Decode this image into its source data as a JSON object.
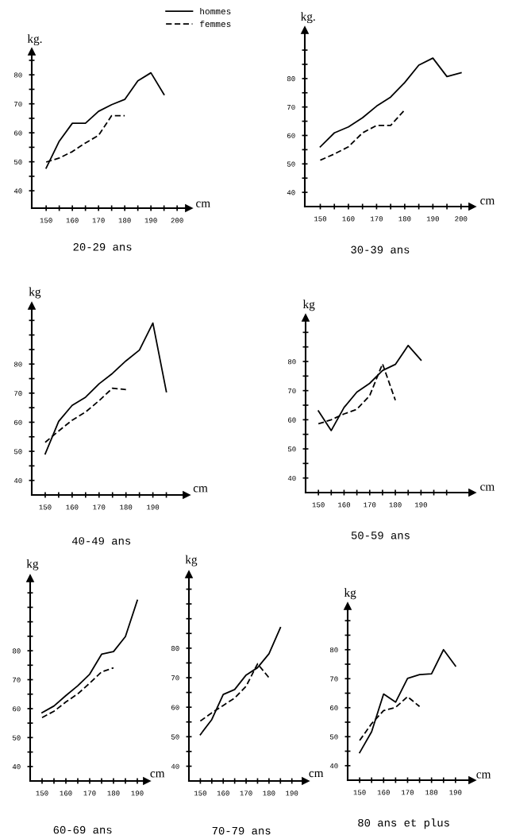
{
  "chart_data": [
    {
      "type": "line",
      "title": "20-29 ans",
      "xlabel": "cm",
      "ylabel": "kg.",
      "legend": "top right",
      "grid": false,
      "xlim": [
        144.5,
        204.5
      ],
      "ylim": [
        34,
        88
      ],
      "xticks": [
        150,
        {
          "value": 155,
          "label": null
        },
        160,
        {
          "value": 165,
          "label": null
        },
        170,
        {
          "value": 175,
          "label": null
        },
        180,
        {
          "value": 185,
          "label": null
        },
        190,
        {
          "value": 195,
          "label": null
        },
        200
      ],
      "yticks": [
        40,
        {
          "value": 45,
          "label": null
        },
        50,
        {
          "value": 55,
          "label": null
        },
        60,
        {
          "value": 65,
          "label": null
        },
        70,
        {
          "value": 75,
          "label": null
        },
        80,
        {
          "value": 85,
          "label": null
        }
      ],
      "series": [
        {
          "name": "hommes",
          "color": "#000000",
          "line_style": "solid",
          "x": [
            150,
            155,
            160,
            165,
            170,
            175,
            180,
            185,
            190,
            195
          ],
          "values": [
            47.8,
            57.1,
            63.3,
            63.3,
            67.4,
            69.7,
            71.5,
            77.9,
            80.7,
            73.2
          ]
        },
        {
          "name": "femmes",
          "color": "#000000",
          "line_style": "dashed",
          "x": [
            150,
            155,
            160,
            165,
            170,
            175,
            180
          ],
          "values": [
            49.9,
            51.3,
            53.5,
            56.5,
            59.1,
            65.9,
            65.9
          ]
        }
      ]
    },
    {
      "type": "line",
      "title": "30-39 ans",
      "xlabel": "cm",
      "ylabel": "kg.",
      "grid": false,
      "xlim": [
        144.5,
        204
      ],
      "ylim": [
        35,
        97
      ],
      "xticks": [
        150,
        {
          "value": 155,
          "label": null
        },
        160,
        {
          "value": 165,
          "label": null
        },
        170,
        {
          "value": 175,
          "label": null
        },
        180,
        {
          "value": 185,
          "label": null
        },
        190,
        {
          "value": 195,
          "label": null
        },
        200
      ],
      "yticks": [
        40,
        {
          "value": 45,
          "label": null
        },
        50,
        {
          "value": 55,
          "label": null
        },
        60,
        {
          "value": 65,
          "label": null
        },
        70,
        {
          "value": 75,
          "label": null
        },
        80,
        {
          "value": 85,
          "label": null
        },
        {
          "value": 90,
          "label": null
        }
      ],
      "series": [
        {
          "color": "#000000",
          "line_style": "solid",
          "x": [
            150,
            155,
            160,
            165,
            170,
            175,
            180,
            185,
            190,
            195,
            200
          ],
          "values": [
            56.0,
            60.9,
            63.0,
            66.2,
            70.3,
            73.5,
            78.6,
            84.7,
            87.2,
            80.7,
            82.0
          ]
        },
        {
          "color": "#000000",
          "line_style": "dashed",
          "x": [
            150,
            155,
            160,
            165,
            170,
            175,
            180
          ],
          "values": [
            51.3,
            53.5,
            56.0,
            60.9,
            63.5,
            63.5,
            69.0
          ]
        }
      ]
    },
    {
      "type": "line",
      "title": "40-49 ans",
      "xlabel": "cm",
      "ylabel": "kg",
      "grid": false,
      "xlim": [
        145,
        202.5
      ],
      "ylim": [
        35,
        100
      ],
      "xticks": [
        150,
        {
          "value": 155,
          "label": null
        },
        160,
        {
          "value": 165,
          "label": null
        },
        170,
        {
          "value": 175,
          "label": null
        },
        180,
        {
          "value": 185,
          "label": null
        },
        190,
        {
          "value": 195,
          "label": null
        }
      ],
      "yticks": [
        40,
        {
          "value": 45,
          "label": null
        },
        50,
        {
          "value": 55,
          "label": null
        },
        60,
        {
          "value": 65,
          "label": null
        },
        70,
        {
          "value": 75,
          "label": null
        },
        80,
        {
          "value": 85,
          "label": null
        },
        {
          "value": 90,
          "label": null
        },
        {
          "value": 95,
          "label": null
        }
      ],
      "series": [
        {
          "color": "#000000",
          "line_style": "solid",
          "x": [
            150,
            155,
            160,
            165,
            170,
            175,
            180,
            185,
            190,
            195
          ],
          "values": [
            49.1,
            60.3,
            65.8,
            68.6,
            73.2,
            76.8,
            81.1,
            84.8,
            94.1,
            70.5
          ]
        },
        {
          "color": "#000000",
          "line_style": "dashed",
          "x": [
            150,
            155,
            160,
            165,
            170,
            175,
            180
          ],
          "values": [
            53.1,
            57.0,
            60.7,
            63.5,
            67.4,
            71.7,
            71.2
          ]
        }
      ]
    },
    {
      "type": "line",
      "title": "50-59 ans",
      "xlabel": "cm",
      "ylabel": "kg",
      "grid": false,
      "xlim": [
        145,
        210
      ],
      "ylim": [
        35,
        95
      ],
      "xticks": [
        150,
        {
          "value": 155,
          "label": null
        },
        160,
        {
          "value": 165,
          "label": null
        },
        170,
        {
          "value": 175,
          "label": null
        },
        180,
        {
          "value": 185,
          "label": null
        },
        190,
        {
          "value": 195,
          "label": null
        },
        {
          "value": 200,
          "label": null
        }
      ],
      "yticks": [
        40,
        {
          "value": 45,
          "label": null
        },
        50,
        {
          "value": 55,
          "label": null
        },
        60,
        {
          "value": 65,
          "label": null
        },
        70,
        {
          "value": 75,
          "label": null
        },
        80,
        {
          "value": 85,
          "label": null
        },
        {
          "value": 90,
          "label": null
        }
      ],
      "series": [
        {
          "color": "#000000",
          "line_style": "solid",
          "x": [
            150,
            155,
            160,
            165,
            170,
            175,
            180,
            185,
            190
          ],
          "values": [
            63.0,
            56.3,
            64.2,
            69.5,
            72.5,
            76.9,
            79.0,
            85.5,
            80.5
          ]
        },
        {
          "color": "#000000",
          "line_style": "dashed",
          "x": [
            150,
            155,
            160,
            165,
            170,
            175,
            180
          ],
          "values": [
            58.6,
            60.0,
            62.0,
            63.6,
            68.3,
            79.2,
            66.7
          ]
        }
      ]
    },
    {
      "type": "line",
      "title": "60-69 ans",
      "xlabel": "cm",
      "ylabel": "kg",
      "grid": false,
      "xlim": [
        145,
        194
      ],
      "ylim": [
        35,
        105
      ],
      "xticks": [
        150,
        {
          "value": 155,
          "label": null
        },
        160,
        {
          "value": 165,
          "label": null
        },
        170,
        {
          "value": 175,
          "label": null
        },
        180,
        {
          "value": 185,
          "label": null
        },
        190
      ],
      "yticks": [
        40,
        {
          "value": 45,
          "label": null
        },
        50,
        {
          "value": 55,
          "label": null
        },
        60,
        {
          "value": 65,
          "label": null
        },
        70,
        {
          "value": 75,
          "label": null
        },
        80,
        {
          "value": 85,
          "label": null
        },
        {
          "value": 90,
          "label": null
        },
        {
          "value": 95,
          "label": null
        },
        {
          "value": 100,
          "label": null
        }
      ],
      "series": [
        {
          "color": "#000000",
          "line_style": "solid",
          "x": [
            150,
            155,
            160,
            165,
            170,
            175,
            180,
            185,
            190
          ],
          "values": [
            58.6,
            60.9,
            64.5,
            67.9,
            71.9,
            78.8,
            79.7,
            84.9,
            97.4
          ]
        },
        {
          "color": "#000000",
          "line_style": "dashed",
          "x": [
            150,
            155,
            160,
            165,
            170,
            175,
            180
          ],
          "values": [
            56.9,
            59.1,
            62.3,
            65.1,
            68.8,
            72.7,
            74.1
          ]
        }
      ]
    },
    {
      "type": "line",
      "title": "70-79 ans",
      "xlabel": "cm",
      "ylabel": "kg",
      "grid": false,
      "xlim": [
        145,
        196
      ],
      "ylim": [
        35,
        105
      ],
      "xticks": [
        150,
        {
          "value": 155,
          "label": null
        },
        160,
        {
          "value": 165,
          "label": null
        },
        170,
        {
          "value": 175,
          "label": null
        },
        180,
        {
          "value": 185,
          "label": null
        },
        190
      ],
      "yticks": [
        40,
        {
          "value": 45,
          "label": null
        },
        50,
        {
          "value": 55,
          "label": null
        },
        60,
        {
          "value": 65,
          "label": null
        },
        70,
        {
          "value": 75,
          "label": null
        },
        80,
        {
          "value": 85,
          "label": null
        },
        {
          "value": 90,
          "label": null
        },
        {
          "value": 95,
          "label": null
        },
        {
          "value": 100,
          "label": null
        }
      ],
      "series": [
        {
          "color": "#000000",
          "line_style": "solid",
          "x": [
            150,
            155,
            160,
            165,
            170,
            175,
            180,
            185
          ],
          "values": [
            50.7,
            55.8,
            64.3,
            66.0,
            70.9,
            73.4,
            78.1,
            87.0
          ]
        },
        {
          "color": "#000000",
          "line_style": "dashed",
          "x": [
            150,
            155,
            160,
            165,
            170,
            175,
            180
          ],
          "values": [
            55.3,
            58.1,
            60.6,
            63.1,
            67.1,
            74.7,
            70.0
          ]
        }
      ]
    },
    {
      "type": "line",
      "title": "80 ans et plus",
      "xlabel": "cm",
      "ylabel": "kg",
      "grid": false,
      "xlim": [
        145,
        197
      ],
      "ylim": [
        35,
        95
      ],
      "xticks": [
        150,
        {
          "value": 155,
          "label": null
        },
        160,
        {
          "value": 165,
          "label": null
        },
        170,
        {
          "value": 175,
          "label": null
        },
        180,
        {
          "value": 185,
          "label": null
        },
        190
      ],
      "yticks": [
        40,
        {
          "value": 45,
          "label": null
        },
        50,
        {
          "value": 55,
          "label": null
        },
        60,
        {
          "value": 65,
          "label": null
        },
        70,
        {
          "value": 75,
          "label": null
        },
        80,
        {
          "value": 85,
          "label": null
        },
        {
          "value": 90,
          "label": null
        }
      ],
      "series": [
        {
          "color": "#000000",
          "line_style": "solid",
          "x": [
            150,
            155,
            160,
            165,
            170,
            175,
            180,
            185,
            190
          ],
          "values": [
            44.5,
            51.7,
            64.7,
            61.9,
            70.1,
            71.4,
            71.7,
            80.0,
            74.4
          ]
        },
        {
          "color": "#000000",
          "line_style": "dashed",
          "x": [
            150,
            155,
            160,
            165,
            170,
            175
          ],
          "values": [
            48.7,
            54.5,
            59.0,
            60.1,
            63.8,
            60.4
          ]
        }
      ]
    }
  ]
}
